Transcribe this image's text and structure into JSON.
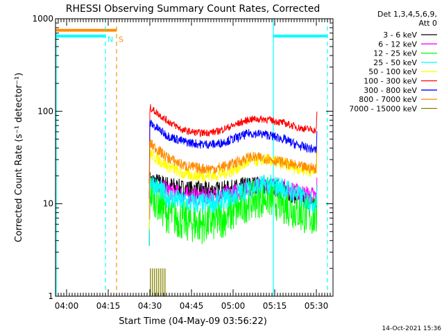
{
  "chart_data": {
    "type": "line",
    "title": "RHESSI Observing Summary Count Rates, Corrected",
    "xlabel": "Start Time (04-May-09 03:56:22)",
    "ylabel": "Corrected Count Rate (s⁻¹ detector⁻¹)",
    "yscale": "log",
    "ylim": [
      1,
      1000
    ],
    "yticks": [
      {
        "label": "1",
        "value": 1
      },
      {
        "label": "10",
        "value": 10
      },
      {
        "label": "100",
        "value": 100
      },
      {
        "label": "1000",
        "value": 1000
      }
    ],
    "xlim": [
      236,
      336
    ],
    "xticks": [
      {
        "label": "04:00",
        "value": 240
      },
      {
        "label": "04:15",
        "value": 255
      },
      {
        "label": "04:30",
        "value": 270
      },
      {
        "label": "04:45",
        "value": 285
      },
      {
        "label": "05:00",
        "value": 300
      },
      {
        "label": "05:15",
        "value": 315
      },
      {
        "label": "05:30",
        "value": 330
      }
    ],
    "legend_header": [
      "Det 1,3,4,5,6,9,",
      "Att 0"
    ],
    "legend_position": "top-right outside",
    "series": [
      {
        "name": "3 - 6 keV",
        "color": "#000000",
        "x": [
          270,
          276,
          282,
          288,
          294,
          300,
          306,
          312,
          318,
          324,
          330
        ],
        "y": [
          18,
          16,
          14.5,
          14,
          14,
          14.5,
          16,
          16,
          14,
          12,
          10
        ]
      },
      {
        "name": "6 - 12 keV",
        "color": "#ff00ff",
        "x": [
          270,
          276,
          282,
          288,
          294,
          300,
          306,
          312,
          318,
          324,
          330
        ],
        "y": [
          18,
          14,
          12.5,
          12,
          12,
          13,
          15,
          16,
          15,
          13,
          12
        ]
      },
      {
        "name": "12 - 25 keV",
        "color": "#00ff00",
        "x": [
          270,
          276,
          282,
          288,
          294,
          300,
          306,
          312,
          318,
          324,
          330
        ],
        "y": [
          14,
          8,
          6.5,
          6,
          6.5,
          8,
          11,
          12,
          10,
          8,
          7
        ]
      },
      {
        "name": "25 - 50 keV",
        "color": "#00ffff",
        "x": [
          270,
          276,
          282,
          288,
          294,
          300,
          306,
          312,
          318,
          324,
          330
        ],
        "y": [
          18,
          12,
          10.5,
          10,
          10.5,
          12,
          15,
          16,
          15,
          12,
          10
        ]
      },
      {
        "name": "50 - 100 keV",
        "color": "#ffff00",
        "x": [
          270,
          276,
          282,
          288,
          294,
          300,
          306,
          312,
          318,
          324,
          330
        ],
        "y": [
          35,
          26,
          21,
          20,
          20.5,
          23,
          29,
          30,
          27,
          24,
          22
        ]
      },
      {
        "name": "100 - 300 keV",
        "color": "#ff0000",
        "x": [
          270,
          276,
          282,
          288,
          294,
          300,
          306,
          312,
          318,
          324,
          330
        ],
        "y": [
          110,
          80,
          62,
          58,
          60,
          70,
          82,
          82,
          75,
          66,
          62
        ]
      },
      {
        "name": "300 - 800 keV",
        "color": "#0000ff",
        "x": [
          270,
          276,
          282,
          288,
          294,
          300,
          306,
          312,
          318,
          324,
          330
        ],
        "y": [
          75,
          55,
          47,
          44,
          44,
          50,
          58,
          56,
          50,
          42,
          38
        ]
      },
      {
        "name": "800 - 7000 keV",
        "color": "#ff8c00",
        "x": [
          270,
          276,
          282,
          288,
          294,
          300,
          306,
          312,
          318,
          324,
          330
        ],
        "y": [
          45,
          32,
          26,
          24,
          24,
          27,
          32,
          31,
          28,
          25,
          24
        ]
      },
      {
        "name": "7000 - 15000 keV",
        "color": "#808000",
        "x": [
          270,
          271,
          272,
          273,
          274,
          275
        ],
        "y": [
          2,
          2,
          2,
          2,
          2,
          2
        ]
      }
    ],
    "annotations": [
      {
        "label": "N",
        "x": 254,
        "color": "#00ffff"
      },
      {
        "label": "S",
        "x": 258,
        "color": "#ff8c00"
      }
    ],
    "vertical_lines": [
      {
        "x": 254,
        "color": "#00ffff",
        "style": "dashed"
      },
      {
        "x": 258,
        "color": "#ff8c00",
        "style": "dashed"
      },
      {
        "x": 314.5,
        "color": "#00ffff",
        "style": "solid"
      },
      {
        "x": 334,
        "color": "#00ffff",
        "style": "dashed"
      }
    ],
    "flag_bars": [
      {
        "x0": 236,
        "x1": 258,
        "value": 750,
        "color": "#ff8c00"
      },
      {
        "x0": 236,
        "x1": 254,
        "value": 650,
        "color": "#00ffff"
      },
      {
        "x0": 314.5,
        "x1": 334,
        "value": 650,
        "color": "#00ffff"
      }
    ],
    "footer": "14-Oct-2021 15:36"
  }
}
